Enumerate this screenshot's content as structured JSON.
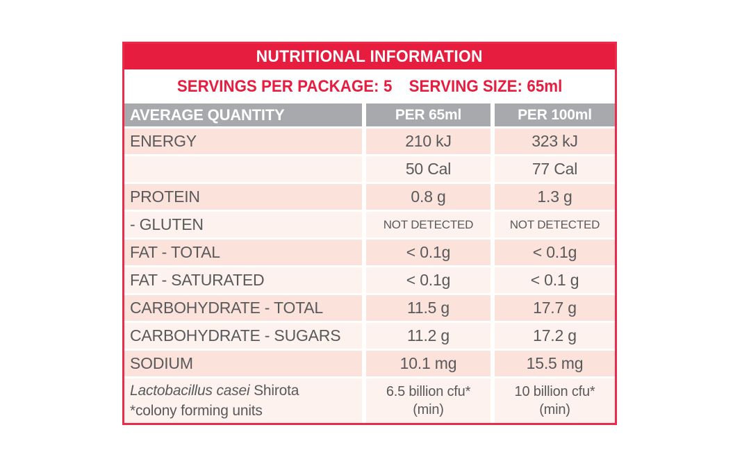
{
  "title": "NUTRITIONAL INFORMATION",
  "servings": {
    "package_label": "SERVINGS PER PACKAGE:",
    "package_value": "5",
    "size_label": "SERVING SIZE:",
    "size_value": "65ml"
  },
  "columns": [
    "AVERAGE QUANTITY",
    "PER 65ml",
    "PER 100ml"
  ],
  "rows": [
    {
      "label": "ENERGY",
      "values": [
        "210 kJ",
        "323 kJ"
      ]
    },
    {
      "label": "",
      "values": [
        "50 Cal",
        "77 Cal"
      ]
    },
    {
      "label": "PROTEIN",
      "values": [
        "0.8 g",
        "1.3 g"
      ]
    },
    {
      "label": "- GLUTEN",
      "values": [
        "NOT DETECTED",
        "NOT DETECTED"
      ],
      "small_values": true
    },
    {
      "label": "FAT - TOTAL",
      "values": [
        "< 0.1g",
        "< 0.1g"
      ]
    },
    {
      "label": "FAT - SATURATED",
      "values": [
        "< 0.1g",
        "< 0.1 g"
      ]
    },
    {
      "label": "CARBOHYDRATE - TOTAL",
      "values": [
        "11.5 g",
        "17.7 g"
      ]
    },
    {
      "label": "CARBOHYDRATE - SUGARS",
      "values": [
        "11.2 g",
        "17.2 g"
      ]
    },
    {
      "label": "SODIUM",
      "values": [
        "10.1 mg",
        "15.5 mg"
      ]
    },
    {
      "label_italic": "Lactobacillus casei",
      "label_after": " Shirota",
      "label_line2": "*colony forming units",
      "values": [
        "6.5 billion cfu*",
        "10 billion cfu*"
      ],
      "value_line2": "(min)"
    }
  ],
  "colors": {
    "header_red": "#e71d3f",
    "border_red": "#ea2c4c",
    "header_gray": "#a7a9ac",
    "row_pink": "#fbe3dc",
    "row_pink_light": "#fdf2ee",
    "text_gray": "#58595b",
    "white": "#ffffff"
  }
}
